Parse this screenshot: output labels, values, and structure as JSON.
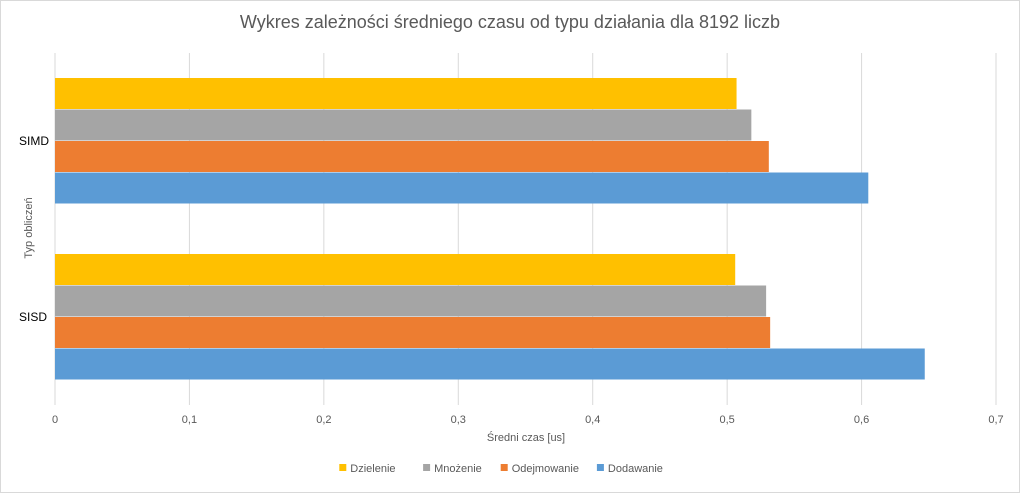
{
  "chart_data": {
    "type": "bar",
    "orientation": "horizontal",
    "title": "Wykres zależności średniego czasu od typu działania dla 8192 liczb",
    "xlabel": "Średni czas [us]",
    "ylabel": "Typ obliczeń",
    "categories": [
      "SISD",
      "SIMD"
    ],
    "xlim": [
      0,
      0.7
    ],
    "xticks": [
      "0",
      "0,1",
      "0,2",
      "0,3",
      "0,4",
      "0,5",
      "0,6",
      "0,7"
    ],
    "grid": true,
    "legend_position": "bottom",
    "series": [
      {
        "name": "Dzielenie",
        "color": "#FFC000",
        "values": [
          0.506,
          0.507
        ]
      },
      {
        "name": "Mnożenie",
        "color": "#A5A5A5",
        "values": [
          0.529,
          0.518
        ]
      },
      {
        "name": "Odejmowanie",
        "color": "#ED7D31",
        "values": [
          0.532,
          0.531
        ]
      },
      {
        "name": "Dodawanie",
        "color": "#5B9BD5",
        "values": [
          0.647,
          0.605
        ]
      }
    ]
  }
}
